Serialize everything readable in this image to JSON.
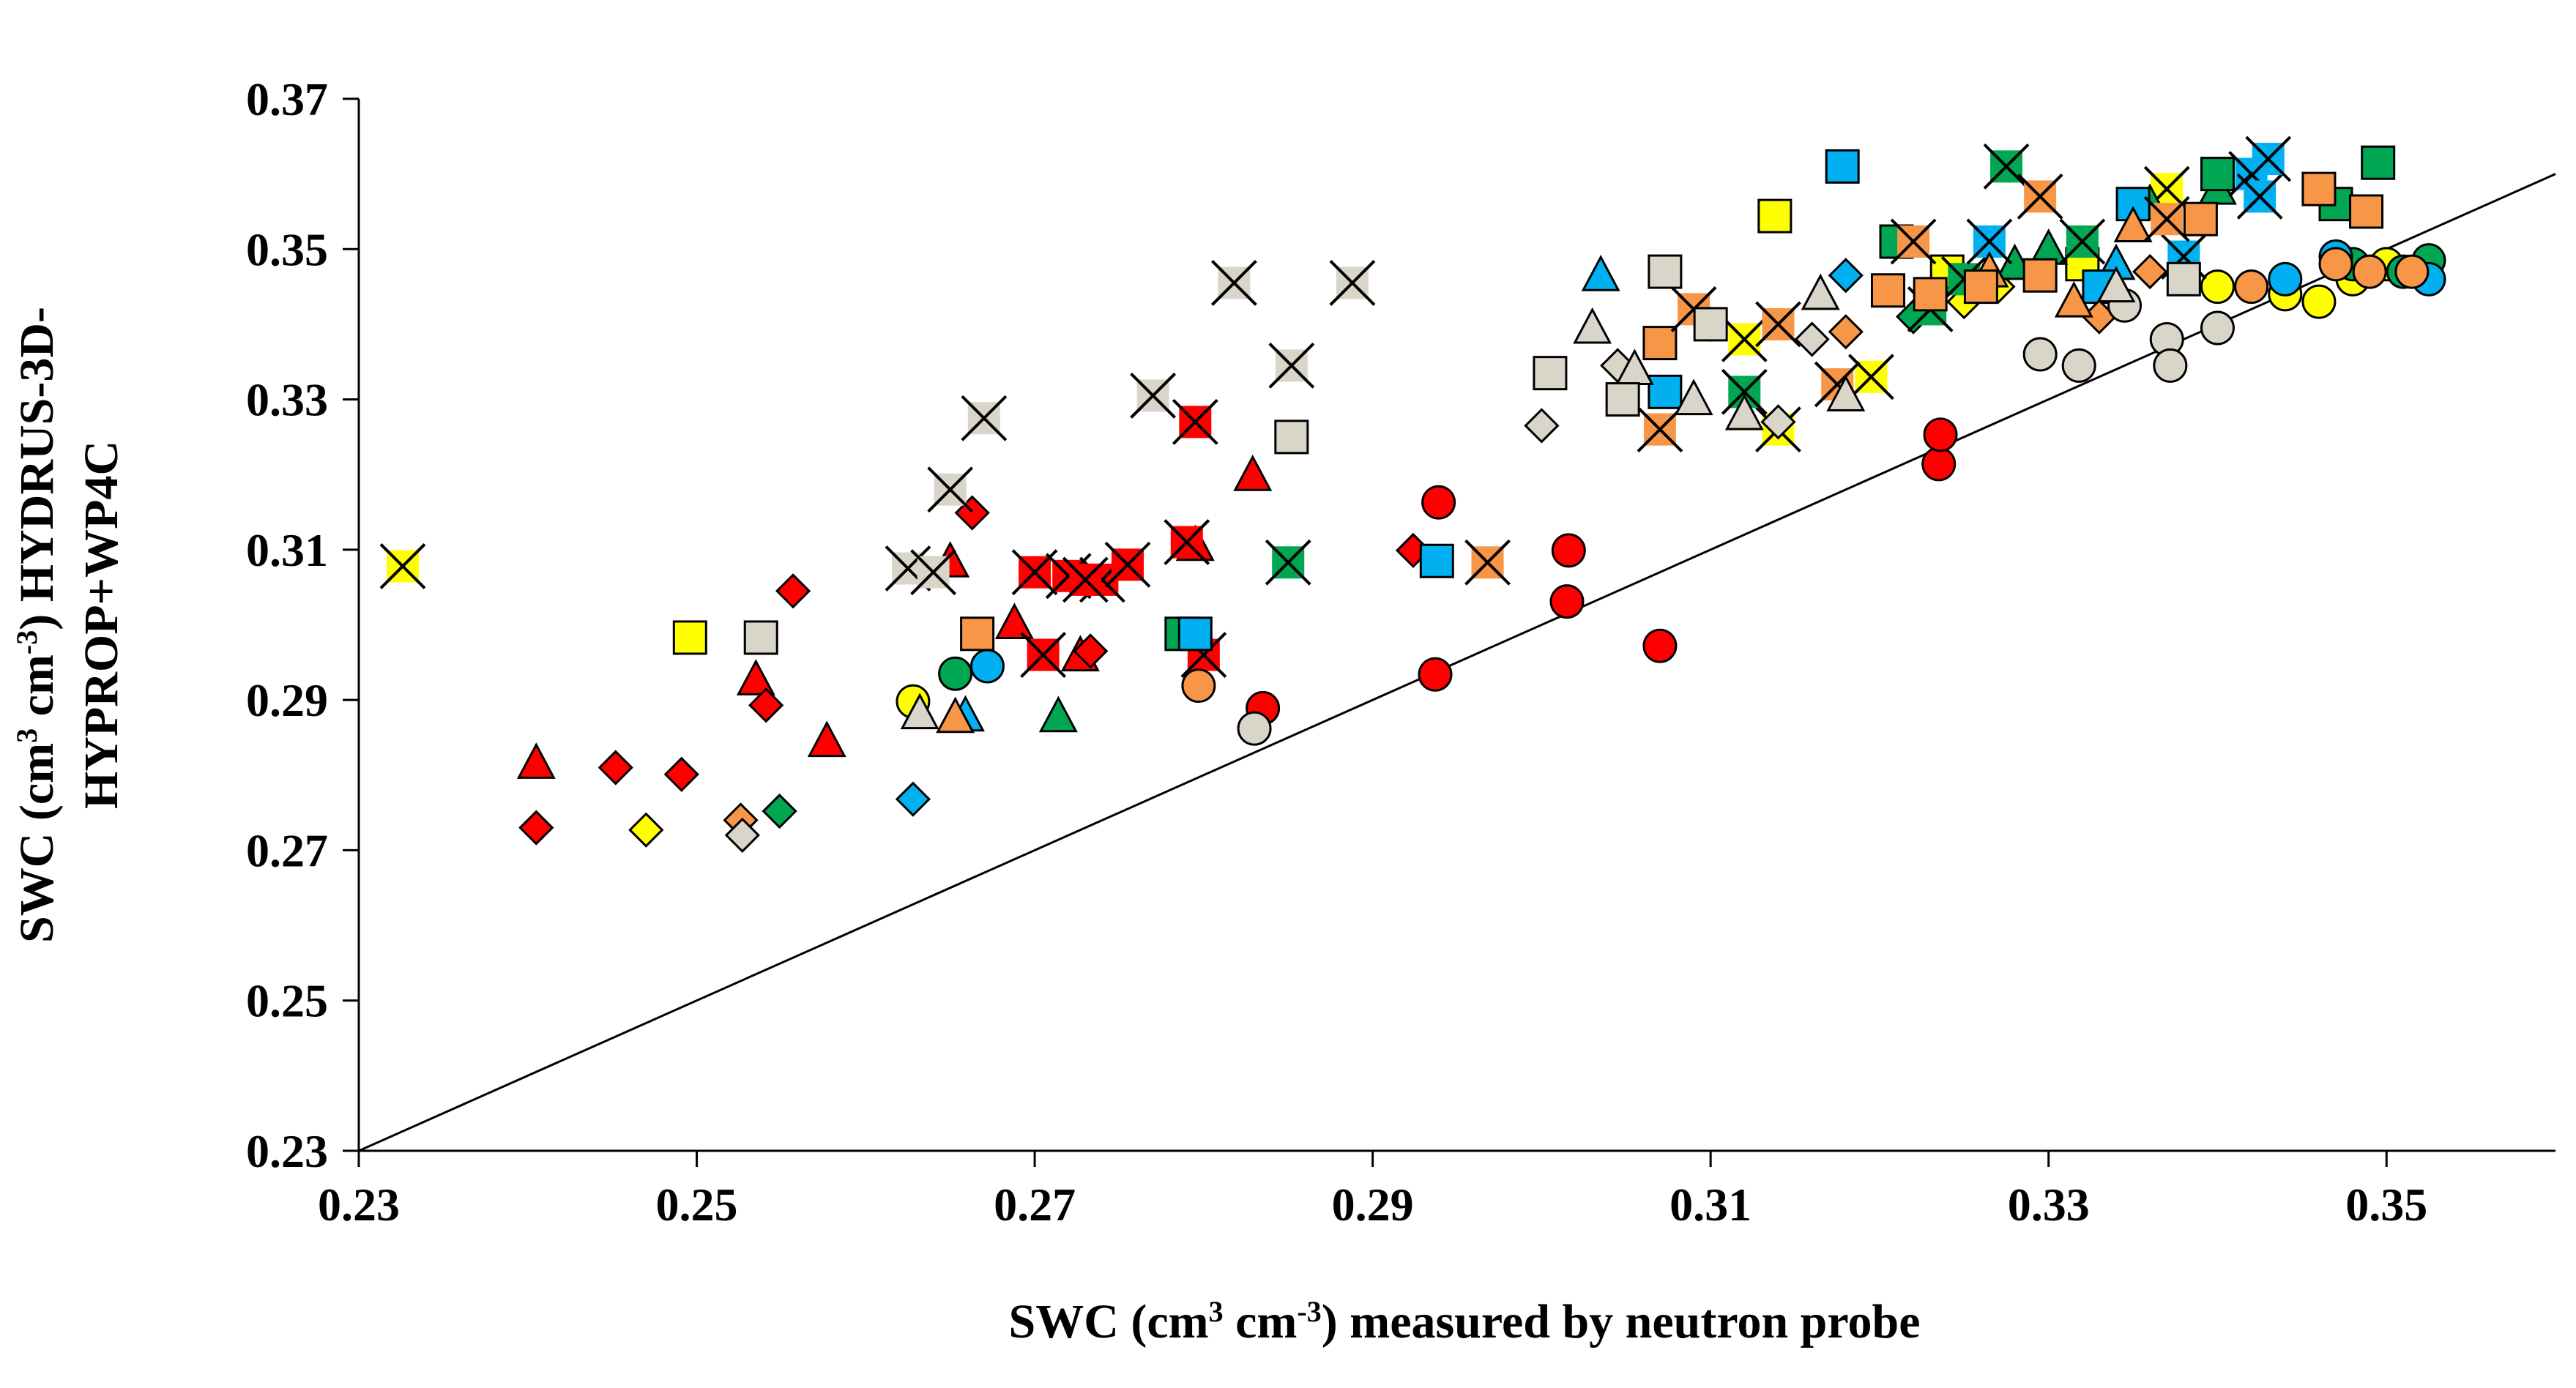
{
  "chart_data": {
    "type": "scatter",
    "title": "",
    "xlabel_parts": [
      "SWC (cm",
      "3",
      " cm",
      "-3",
      ") measured by neutron probe"
    ],
    "ylabel_line1_parts": [
      "SWC (cm",
      "3",
      " cm",
      "-3",
      ") HYDRUS-3D-"
    ],
    "ylabel_line2": "HYPROP+WP4C",
    "xlim": [
      0.23,
      0.36
    ],
    "ylim": [
      0.23,
      0.37
    ],
    "x_ticks": [
      "0.23",
      "0.25",
      "0.27",
      "0.29",
      "0.31",
      "0.33",
      "0.35"
    ],
    "y_ticks": [
      "0.23",
      "0.25",
      "0.27",
      "0.29",
      "0.31",
      "0.33",
      "0.35",
      "0.37"
    ],
    "reference_line": {
      "name": "1:1 line",
      "from": [
        0.23,
        0.23
      ],
      "to": [
        0.36,
        0.36
      ]
    },
    "colors": {
      "red": "#ff0000",
      "yellow": "#ffff00",
      "green": "#00a651",
      "blue": "#00b0f0",
      "orange": "#f79646",
      "gray": "#d9d5c9"
    },
    "series": [
      {
        "name": "red-circle",
        "color": "red",
        "marker": "circle",
        "x": [
          0.2835,
          0.2937,
          0.2939,
          0.3015,
          0.3016,
          0.307,
          0.3235,
          0.3236
        ],
        "y": [
          0.2889,
          0.2934,
          0.3163,
          0.3031,
          0.3099,
          0.2972,
          0.3214,
          0.3253
        ]
      },
      {
        "name": "red-triangle",
        "color": "red",
        "marker": "triangle",
        "x": [
          0.2405,
          0.2535,
          0.2577,
          0.265,
          0.2688,
          0.2727,
          0.2795,
          0.2829
        ],
        "y": [
          0.2816,
          0.2927,
          0.2845,
          0.3084,
          0.3002,
          0.2959,
          0.3106,
          0.3199
        ]
      },
      {
        "name": "red-diamond",
        "color": "red",
        "marker": "diamond",
        "x": [
          0.2405,
          0.2452,
          0.2491,
          0.2541,
          0.2557,
          0.2663,
          0.2733,
          0.2924
        ],
        "y": [
          0.273,
          0.281,
          0.2801,
          0.2893,
          0.3045,
          0.3149,
          0.2965,
          0.3099
        ]
      },
      {
        "name": "red-square-x",
        "color": "red",
        "marker": "squarex",
        "x": [
          0.27,
          0.272,
          0.274,
          0.2755,
          0.279,
          0.2795,
          0.28,
          0.2705,
          0.273
        ],
        "y": [
          0.307,
          0.3065,
          0.306,
          0.308,
          0.311,
          0.327,
          0.296,
          0.296,
          0.306
        ]
      },
      {
        "name": "yellow-circle",
        "color": "yellow",
        "marker": "circle",
        "x": [
          0.2628,
          0.34,
          0.344,
          0.346,
          0.348,
          0.35
        ],
        "y": [
          0.2898,
          0.345,
          0.344,
          0.343,
          0.346,
          0.348
        ]
      },
      {
        "name": "yellow-diamond",
        "color": "yellow",
        "marker": "diamond",
        "x": [
          0.247,
          0.325,
          0.327
        ],
        "y": [
          0.2727,
          0.343,
          0.345
        ]
      },
      {
        "name": "yellow-square",
        "color": "yellow",
        "marker": "square",
        "x": [
          0.2496,
          0.3138,
          0.324,
          0.332
        ],
        "y": [
          0.2983,
          0.3544,
          0.347,
          0.348
        ]
      },
      {
        "name": "yellow-square-x",
        "color": "yellow",
        "marker": "squarex",
        "x": [
          0.2326,
          0.312,
          0.314,
          0.3195,
          0.337
        ],
        "y": [
          0.3078,
          0.338,
          0.326,
          0.333,
          0.358
        ]
      },
      {
        "name": "green-circle",
        "color": "green",
        "marker": "circle",
        "x": [
          0.2653,
          0.348,
          0.351,
          0.3525
        ],
        "y": [
          0.2935,
          0.348,
          0.347,
          0.3485
        ]
      },
      {
        "name": "green-diamond",
        "color": "green",
        "marker": "diamond",
        "x": [
          0.2549,
          0.322
        ],
        "y": [
          0.2752,
          0.341
        ]
      },
      {
        "name": "green-triangle",
        "color": "green",
        "marker": "triangle",
        "x": [
          0.2714,
          0.328,
          0.33,
          0.336,
          0.34
        ],
        "y": [
          0.2878,
          0.348,
          0.35,
          0.356,
          0.358
        ]
      },
      {
        "name": "green-square",
        "color": "green",
        "marker": "square",
        "x": [
          0.2787,
          0.321,
          0.34,
          0.347,
          0.3495
        ],
        "y": [
          0.2988,
          0.351,
          0.36,
          0.356,
          0.3615
        ]
      },
      {
        "name": "green-square-x",
        "color": "green",
        "marker": "squarex",
        "x": [
          0.285,
          0.312,
          0.323,
          0.325,
          0.3275,
          0.332
        ],
        "y": [
          0.3083,
          0.331,
          0.342,
          0.346,
          0.361,
          0.351
        ]
      },
      {
        "name": "blue-circle",
        "color": "blue",
        "marker": "circle",
        "x": [
          0.2672,
          0.344,
          0.347,
          0.3525
        ],
        "y": [
          0.2945,
          0.346,
          0.349,
          0.346
        ]
      },
      {
        "name": "blue-diamond",
        "color": "blue",
        "marker": "diamond",
        "x": [
          0.2628,
          0.318
        ],
        "y": [
          0.2768,
          0.3465
        ]
      },
      {
        "name": "blue-triangle",
        "color": "blue",
        "marker": "triangle",
        "x": [
          0.2659,
          0.3035,
          0.334
        ],
        "y": [
          0.2879,
          0.3465,
          0.348
        ]
      },
      {
        "name": "blue-square",
        "color": "blue",
        "marker": "square",
        "x": [
          0.2795,
          0.2938,
          0.3073,
          0.3178,
          0.333,
          0.335
        ],
        "y": [
          0.2988,
          0.3085,
          0.331,
          0.361,
          0.345,
          0.356
        ]
      },
      {
        "name": "blue-square-x",
        "color": "blue",
        "marker": "squarex",
        "x": [
          0.3265,
          0.342,
          0.3425,
          0.343,
          0.338
        ],
        "y": [
          0.351,
          0.36,
          0.357,
          0.362,
          0.349
        ]
      },
      {
        "name": "orange-circle",
        "color": "orange",
        "marker": "circle",
        "x": [
          0.2797,
          0.342,
          0.347,
          0.349,
          0.3515
        ],
        "y": [
          0.2919,
          0.345,
          0.348,
          0.347,
          0.347
        ]
      },
      {
        "name": "orange-diamond",
        "color": "orange",
        "marker": "diamond",
        "x": [
          0.2526,
          0.318,
          0.333,
          0.336
        ],
        "y": [
          0.274,
          0.339,
          0.341,
          0.347
        ]
      },
      {
        "name": "orange-triangle",
        "color": "orange",
        "marker": "triangle",
        "x": [
          0.2653,
          0.3265,
          0.3315,
          0.335
        ],
        "y": [
          0.2877,
          0.347,
          0.343,
          0.353
        ]
      },
      {
        "name": "orange-square",
        "color": "orange",
        "marker": "square",
        "x": [
          0.2666,
          0.307,
          0.3205,
          0.323,
          0.326,
          0.3295,
          0.339,
          0.346,
          0.3488
        ],
        "y": [
          0.2988,
          0.3375,
          0.3445,
          0.344,
          0.345,
          0.3465,
          0.354,
          0.358,
          0.355
        ]
      },
      {
        "name": "orange-square-x",
        "color": "orange",
        "marker": "squarex",
        "x": [
          0.2968,
          0.307,
          0.309,
          0.314,
          0.3175,
          0.322,
          0.3295,
          0.337
        ],
        "y": [
          0.3083,
          0.326,
          0.342,
          0.34,
          0.332,
          0.351,
          0.357,
          0.354
        ]
      },
      {
        "name": "gray-circle",
        "color": "gray",
        "marker": "circle",
        "x": [
          0.283,
          0.3295,
          0.3318,
          0.3345,
          0.337,
          0.3372,
          0.34
        ],
        "y": [
          0.2862,
          0.336,
          0.3345,
          0.3425,
          0.338,
          0.3345,
          0.3395
        ]
      },
      {
        "name": "gray-diamond",
        "color": "gray",
        "marker": "diamond",
        "x": [
          0.2527,
          0.3,
          0.3045,
          0.31,
          0.314,
          0.316
        ],
        "y": [
          0.272,
          0.3265,
          0.3345,
          0.34,
          0.327,
          0.338
        ]
      },
      {
        "name": "gray-triangle",
        "color": "gray",
        "marker": "triangle",
        "x": [
          0.2632,
          0.303,
          0.3055,
          0.309,
          0.312,
          0.3165,
          0.318,
          0.334
        ],
        "y": [
          0.2882,
          0.3395,
          0.334,
          0.33,
          0.328,
          0.344,
          0.3305,
          0.345
        ]
      },
      {
        "name": "gray-square",
        "color": "gray",
        "marker": "square",
        "x": [
          0.2538,
          0.2852,
          0.3005,
          0.3048,
          0.3073,
          0.31,
          0.338
        ],
        "y": [
          0.2983,
          0.325,
          0.3335,
          0.33,
          0.347,
          0.34,
          0.346
        ]
      },
      {
        "name": "gray-square-x",
        "color": "gray",
        "marker": "squarex",
        "x": [
          0.2625,
          0.265,
          0.267,
          0.277,
          0.2818,
          0.2852,
          0.2888,
          0.264
        ],
        "y": [
          0.3075,
          0.318,
          0.3275,
          0.3305,
          0.3455,
          0.3345,
          0.3455,
          0.307
        ]
      }
    ]
  }
}
